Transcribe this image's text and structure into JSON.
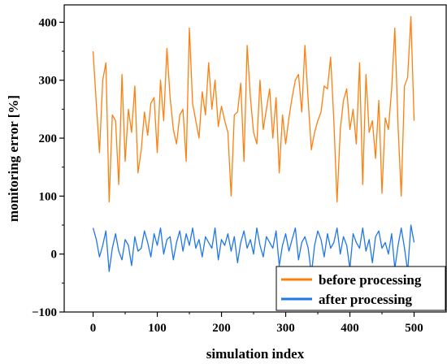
{
  "chart_data": {
    "type": "line",
    "title": "",
    "xlabel": "simulation index",
    "ylabel": "monitoring error [%]",
    "xlim": [
      -45,
      550
    ],
    "ylim": [
      -100,
      430
    ],
    "xticks": [
      0,
      100,
      200,
      300,
      400,
      500
    ],
    "yticks": [
      -100,
      0,
      100,
      200,
      300,
      400
    ],
    "xtick_labels": [
      "0",
      "100",
      "200",
      "300",
      "400",
      "500"
    ],
    "ytick_labels": [
      "−100",
      "0",
      "100",
      "200",
      "300",
      "400"
    ],
    "grid": false,
    "legend_position": "bottom-right",
    "series": [
      {
        "name": "before processing",
        "color": "#ff7f0e",
        "x": [
          0,
          5,
          10,
          15,
          20,
          25,
          30,
          35,
          40,
          45,
          50,
          55,
          60,
          65,
          70,
          75,
          80,
          85,
          90,
          95,
          100,
          105,
          110,
          115,
          120,
          125,
          130,
          135,
          140,
          145,
          150,
          155,
          160,
          165,
          170,
          175,
          180,
          185,
          190,
          195,
          200,
          205,
          210,
          215,
          220,
          225,
          230,
          235,
          240,
          245,
          250,
          255,
          260,
          265,
          270,
          275,
          280,
          285,
          290,
          295,
          300,
          305,
          310,
          315,
          320,
          325,
          330,
          335,
          340,
          345,
          350,
          355,
          360,
          365,
          370,
          375,
          380,
          385,
          390,
          395,
          400,
          405,
          410,
          415,
          420,
          425,
          430,
          435,
          440,
          445,
          450,
          455,
          460,
          465,
          470,
          475,
          480,
          485,
          490,
          495,
          500
        ],
        "values": [
          350,
          260,
          175,
          300,
          330,
          90,
          240,
          230,
          120,
          310,
          160,
          250,
          210,
          290,
          140,
          180,
          245,
          205,
          260,
          270,
          175,
          300,
          230,
          355,
          270,
          215,
          190,
          240,
          250,
          160,
          390,
          260,
          230,
          200,
          280,
          240,
          330,
          250,
          300,
          220,
          255,
          230,
          210,
          100,
          240,
          245,
          295,
          160,
          360,
          270,
          210,
          190,
          300,
          215,
          250,
          285,
          200,
          270,
          140,
          240,
          190,
          235,
          270,
          300,
          310,
          245,
          360,
          265,
          180,
          210,
          230,
          245,
          290,
          285,
          340,
          230,
          90,
          215,
          265,
          285,
          215,
          250,
          190,
          330,
          120,
          310,
          210,
          230,
          165,
          265,
          105,
          235,
          215,
          285,
          390,
          220,
          100,
          290,
          305,
          410,
          230
        ]
      },
      {
        "name": "after processing",
        "color": "#1f77e8",
        "x": [
          0,
          5,
          10,
          15,
          20,
          25,
          30,
          35,
          40,
          45,
          50,
          55,
          60,
          65,
          70,
          75,
          80,
          85,
          90,
          95,
          100,
          105,
          110,
          115,
          120,
          125,
          130,
          135,
          140,
          145,
          150,
          155,
          160,
          165,
          170,
          175,
          180,
          185,
          190,
          195,
          200,
          205,
          210,
          215,
          220,
          225,
          230,
          235,
          240,
          245,
          250,
          255,
          260,
          265,
          270,
          275,
          280,
          285,
          290,
          295,
          300,
          305,
          310,
          315,
          320,
          325,
          330,
          335,
          340,
          345,
          350,
          355,
          360,
          365,
          370,
          375,
          380,
          385,
          390,
          395,
          400,
          405,
          410,
          415,
          420,
          425,
          430,
          435,
          440,
          445,
          450,
          455,
          460,
          465,
          470,
          475,
          480,
          485,
          490,
          495,
          500
        ],
        "values": [
          45,
          25,
          -5,
          15,
          40,
          -30,
          10,
          35,
          5,
          -10,
          25,
          15,
          -20,
          30,
          5,
          10,
          40,
          20,
          -5,
          35,
          15,
          45,
          0,
          25,
          30,
          -10,
          20,
          40,
          5,
          35,
          15,
          45,
          10,
          25,
          -5,
          30,
          20,
          10,
          45,
          -10,
          25,
          15,
          35,
          5,
          30,
          -15,
          20,
          40,
          10,
          25,
          0,
          45,
          15,
          -5,
          30,
          20,
          10,
          40,
          -20,
          15,
          35,
          5,
          25,
          45,
          -10,
          20,
          30,
          10,
          -35,
          15,
          40,
          25,
          -5,
          35,
          10,
          20,
          45,
          0,
          30,
          15,
          -25,
          35,
          20,
          10,
          45,
          5,
          25,
          -15,
          30,
          40,
          10,
          20,
          0,
          35,
          -25,
          15,
          45,
          10,
          -30,
          50,
          20
        ]
      }
    ]
  }
}
